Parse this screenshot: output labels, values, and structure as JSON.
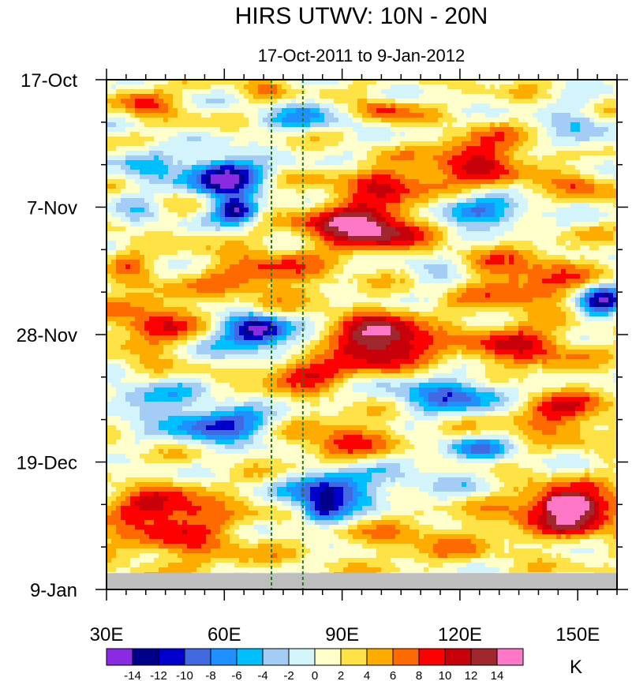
{
  "chart_data": {
    "type": "heatmap",
    "title": "HIRS UTWV: 10N - 20N",
    "subtitle": "17-Oct-2011 to 9-Jan-2012",
    "xlabel": "",
    "ylabel": "",
    "xlim": [
      30,
      160
    ],
    "ylim_days": [
      0,
      84
    ],
    "x_ticks": [
      {
        "value": 30,
        "label": "30E"
      },
      {
        "value": 60,
        "label": "60E"
      },
      {
        "value": 90,
        "label": "90E"
      },
      {
        "value": 120,
        "label": "120E"
      },
      {
        "value": 150,
        "label": "150E"
      }
    ],
    "x_minor_step": 5,
    "y_ticks": [
      {
        "day": 0,
        "label": "17-Oct"
      },
      {
        "day": 21,
        "label": "7-Nov"
      },
      {
        "day": 42,
        "label": "28-Nov"
      },
      {
        "day": 63,
        "label": "19-Dec"
      },
      {
        "day": 84,
        "label": "9-Jan"
      }
    ],
    "y_minor_step_days": 7,
    "reference_lines_lon": [
      72,
      80
    ],
    "no_data_after_day": 81.3,
    "units": "K",
    "levels": [
      -14,
      -12,
      -10,
      -8,
      -6,
      -4,
      -2,
      0,
      2,
      4,
      6,
      8,
      10,
      12,
      14
    ],
    "colors": [
      "#8a2be2",
      "#00008b",
      "#0000cd",
      "#4169e1",
      "#1e90ff",
      "#00bfff",
      "#a3cdf5",
      "#d2f4fa",
      "#ffffcc",
      "#ffe245",
      "#ffac00",
      "#ff6a00",
      "#ff0000",
      "#c8000a",
      "#a0282d",
      "#ff78c8"
    ],
    "background_anomaly": 1.5,
    "features": [
      {
        "lon": 60,
        "day": 16,
        "rx": 10,
        "ry": 3.5,
        "value": -17
      },
      {
        "lon": 63,
        "day": 21.5,
        "rx": 6,
        "ry": 2.4,
        "value": -15
      },
      {
        "lon": 40,
        "day": 14,
        "rx": 9,
        "ry": 3.5,
        "value": -6
      },
      {
        "lon": 38,
        "day": 22,
        "rx": 6,
        "ry": 3,
        "value": -4
      },
      {
        "lon": 96,
        "day": 24,
        "rx": 16,
        "ry": 4,
        "value": 15
      },
      {
        "lon": 102,
        "day": 17,
        "rx": 14,
        "ry": 2.6,
        "value": 9
      },
      {
        "lon": 125,
        "day": 13,
        "rx": 14,
        "ry": 4.5,
        "value": 9
      },
      {
        "lon": 100,
        "day": 5,
        "rx": 8,
        "ry": 2,
        "value": 7
      },
      {
        "lon": 80,
        "day": 6,
        "rx": 14,
        "ry": 3,
        "value": -6
      },
      {
        "lon": 150,
        "day": 8,
        "rx": 8,
        "ry": 5,
        "value": -5
      },
      {
        "lon": 124,
        "day": 22,
        "rx": 14,
        "ry": 2.4,
        "value": -11
      },
      {
        "lon": 135,
        "day": 33,
        "rx": 20,
        "ry": 5,
        "value": 7
      },
      {
        "lon": 70,
        "day": 32,
        "rx": 16,
        "ry": 4,
        "value": 7
      },
      {
        "lon": 115,
        "day": 32,
        "rx": 10,
        "ry": 3,
        "value": -5
      },
      {
        "lon": 68,
        "day": 41,
        "rx": 8,
        "ry": 2.5,
        "value": -15
      },
      {
        "lon": 68,
        "day": 44,
        "rx": 16,
        "ry": 3,
        "value": -6
      },
      {
        "lon": 100,
        "day": 43,
        "rx": 13,
        "ry": 4.5,
        "value": 15
      },
      {
        "lon": 80,
        "day": 48,
        "rx": 12,
        "ry": 3,
        "value": 9
      },
      {
        "lon": 42,
        "day": 40,
        "rx": 12,
        "ry": 6,
        "value": 7
      },
      {
        "lon": 135,
        "day": 44,
        "rx": 16,
        "ry": 4,
        "value": 8
      },
      {
        "lon": 155,
        "day": 37,
        "rx": 6,
        "ry": 3,
        "value": -9
      },
      {
        "lon": 118,
        "day": 52,
        "rx": 17,
        "ry": 3.2,
        "value": -10
      },
      {
        "lon": 60,
        "day": 57,
        "rx": 14,
        "ry": 3,
        "value": -12
      },
      {
        "lon": 45,
        "day": 53,
        "rx": 12,
        "ry": 4,
        "value": -5
      },
      {
        "lon": 35,
        "day": 52,
        "rx": 6,
        "ry": 3,
        "value": -3
      },
      {
        "lon": 145,
        "day": 55,
        "rx": 14,
        "ry": 4,
        "value": 8
      },
      {
        "lon": 125,
        "day": 61,
        "rx": 10,
        "ry": 2,
        "value": -8
      },
      {
        "lon": 90,
        "day": 59,
        "rx": 16,
        "ry": 4,
        "value": 6
      },
      {
        "lon": 87,
        "day": 67.5,
        "rx": 11,
        "ry": 3,
        "value": -14
      },
      {
        "lon": 85,
        "day": 71,
        "rx": 6,
        "ry": 2.5,
        "value": -11
      },
      {
        "lon": 45,
        "day": 71,
        "rx": 16,
        "ry": 3.8,
        "value": 10
      },
      {
        "lon": 50,
        "day": 77,
        "rx": 20,
        "ry": 4,
        "value": 5
      },
      {
        "lon": 148,
        "day": 71,
        "rx": 16,
        "ry": 4.5,
        "value": 12
      },
      {
        "lon": 147,
        "day": 70,
        "rx": 5,
        "ry": 1.5,
        "value": 16
      },
      {
        "lon": 110,
        "day": 66,
        "rx": 18,
        "ry": 4,
        "value": -3
      },
      {
        "lon": 110,
        "day": 76,
        "rx": 20,
        "ry": 4,
        "value": 4
      },
      {
        "lon": 158,
        "day": 36,
        "rx": 5,
        "ry": 3,
        "value": -7
      },
      {
        "lon": 150,
        "day": 17,
        "rx": 8,
        "ry": 2.5,
        "value": 6
      },
      {
        "lon": 35,
        "day": 30,
        "rx": 5,
        "ry": 4,
        "value": 4
      },
      {
        "lon": 70,
        "day": 2,
        "rx": 6,
        "ry": 2,
        "value": 5
      },
      {
        "lon": 40,
        "day": 4,
        "rx": 7,
        "ry": 2.5,
        "value": 7
      }
    ]
  }
}
